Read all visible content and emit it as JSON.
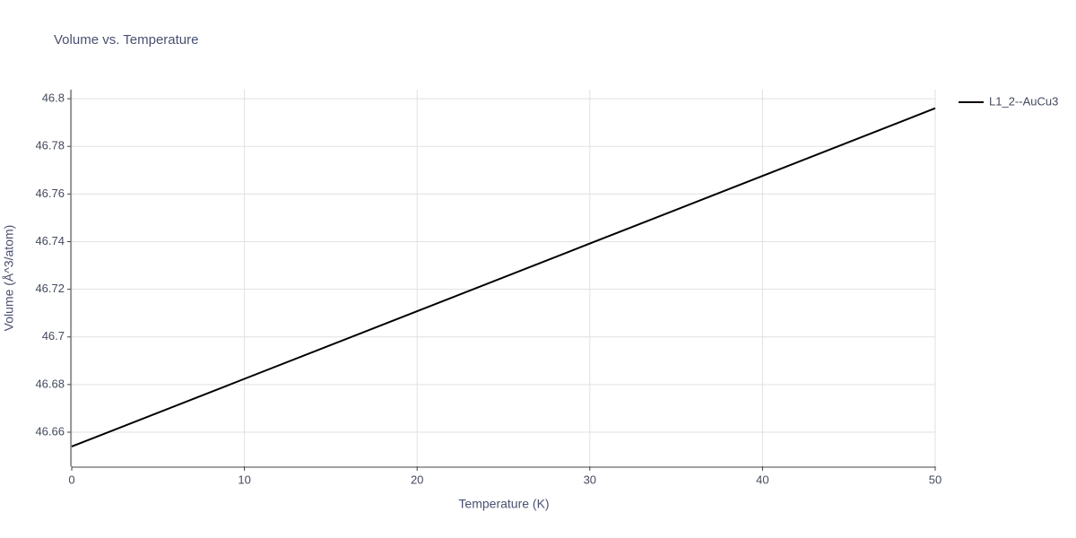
{
  "chart_data": {
    "type": "line",
    "title": "Volume vs. Temperature",
    "x_label": "Temperature (K)",
    "y_label": "Volume (Å^3/atom)",
    "x": [
      0,
      10,
      20,
      30,
      40,
      50
    ],
    "series": [
      {
        "name": "L1_2--AuCu3",
        "color": "#000000",
        "values": [
          46.654,
          46.6824,
          46.7108,
          46.7392,
          46.7676,
          46.796
        ]
      }
    ],
    "xlim": [
      0,
      50
    ],
    "xticks": [
      0,
      10,
      20,
      30,
      40,
      50
    ],
    "ylim": [
      46.6457,
      46.8038
    ],
    "yticks": [
      46.66,
      46.68,
      46.7,
      46.72,
      46.74,
      46.76,
      46.78,
      46.8
    ],
    "grid": true,
    "legend": "right"
  }
}
